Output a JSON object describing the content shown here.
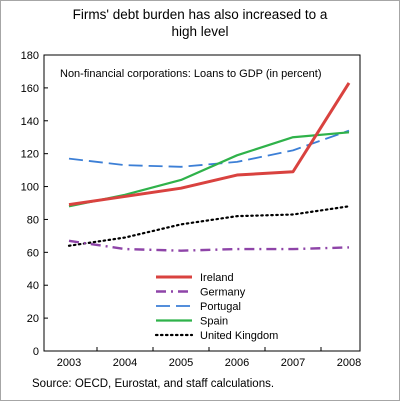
{
  "title_lines": [
    "Firms' debt burden has also increased to a",
    "high level"
  ],
  "source": "Source: OECD, Eurostat, and staff calculations.",
  "chart_data": {
    "type": "line",
    "title": "Firms' debt burden has also increased to a high level",
    "subtitle": "Non-financial corporations: Loans to GDP (in percent)",
    "categories": [
      "2003",
      "2004",
      "2005",
      "2006",
      "2007",
      "2008"
    ],
    "ylim": [
      0,
      180
    ],
    "yticks": [
      0,
      20,
      40,
      60,
      80,
      100,
      120,
      140,
      160,
      180
    ],
    "legend_position": "bottom-center",
    "series": [
      {
        "name": "Ireland",
        "color": "#d9423f",
        "dash": "solid",
        "values": [
          89,
          94,
          99,
          107,
          109,
          163
        ]
      },
      {
        "name": "Germany",
        "color": "#8e44a8",
        "dash": "dashdot",
        "values": [
          67,
          62,
          61,
          62,
          62,
          63
        ]
      },
      {
        "name": "Portugal",
        "color": "#3c7fd6",
        "dash": "dashed",
        "values": [
          117,
          113,
          112,
          115,
          122,
          134
        ]
      },
      {
        "name": "Spain",
        "color": "#2fb24a",
        "dash": "solid",
        "values": [
          88,
          95,
          104,
          119,
          130,
          133
        ]
      },
      {
        "name": "United Kingdom",
        "color": "#000000",
        "dash": "dotted",
        "values": [
          64,
          69,
          77,
          82,
          83,
          88
        ]
      }
    ]
  }
}
